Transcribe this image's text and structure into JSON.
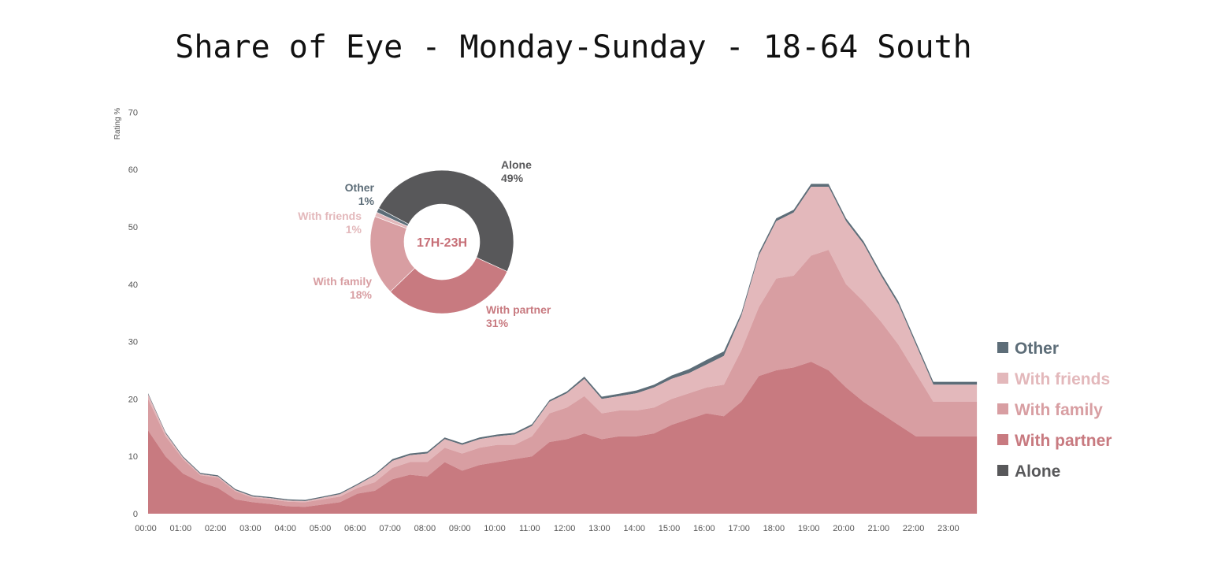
{
  "colors": {
    "other": "#5d6d78",
    "with_friends": "#e3b8bb",
    "with_family": "#d89ea2",
    "with_partner": "#c87a80",
    "alone": "#58585a",
    "center_text": "#c76f77"
  },
  "chart_data": [
    {
      "type": "area",
      "stacked": true,
      "title": "Share of Eye - Monday-Sunday - 18-64 South",
      "ylabel": "Rating %",
      "xlabel": "",
      "ylim": [
        0,
        70
      ],
      "yticks": [
        "0",
        "10",
        "20",
        "30",
        "40",
        "50",
        "60",
        "70"
      ],
      "xticks": [
        "00:00",
        "01:00",
        "02:00",
        "03:00",
        "04:00",
        "05:00",
        "06:00",
        "07:00",
        "08:00",
        "09:00",
        "10:00",
        "11:00",
        "12:00",
        "13:00",
        "14:00",
        "15:00",
        "16:00",
        "17:00",
        "18:00",
        "19:00",
        "20:00",
        "21:00",
        "22:00",
        "23:00"
      ],
      "x_hours": [
        0,
        0.5,
        1,
        1.5,
        2,
        2.5,
        3,
        3.5,
        4,
        4.5,
        5,
        5.5,
        6,
        6.5,
        7,
        7.5,
        8,
        8.5,
        9,
        9.5,
        10,
        10.5,
        11,
        11.5,
        12,
        12.5,
        13,
        13.5,
        14,
        14.5,
        15,
        15.5,
        16,
        16.5,
        17,
        17.5,
        18,
        18.5,
        19,
        19.5,
        20,
        20.5,
        21,
        21.5,
        22,
        22.5,
        23,
        23.5,
        23.75
      ],
      "series": [
        {
          "name": "With partner",
          "values": [
            14.5,
            10,
            7,
            5.5,
            4.5,
            2.5,
            2,
            1.7,
            1.3,
            1.2,
            1.6,
            2,
            3.5,
            4,
            6,
            6.8,
            6.5,
            9,
            7.5,
            8.5,
            9,
            9.5,
            10,
            12.5,
            13,
            14,
            13,
            13.5,
            13.5,
            14,
            15.5,
            16.5,
            17.5,
            17,
            19.5,
            24,
            25,
            25.5,
            26.5,
            25,
            22,
            19.5,
            17.5,
            15.5,
            13.5,
            13.5,
            13.5,
            13.5,
            13.5
          ]
        },
        {
          "name": "With family",
          "values": [
            5.5,
            3.5,
            2.5,
            1.2,
            1.8,
            1.4,
            0.8,
            0.8,
            0.8,
            0.8,
            0.9,
            1.0,
            1.0,
            1.5,
            2.0,
            2.2,
            2.5,
            2.5,
            3.0,
            3.0,
            3.0,
            2.5,
            3.5,
            5.0,
            5.5,
            6.5,
            4.5,
            4.5,
            4.5,
            4.5,
            4.5,
            4.5,
            4.5,
            5.5,
            9.0,
            12.0,
            16.0,
            16.0,
            18.5,
            21.0,
            18.0,
            17.5,
            16.0,
            14.0,
            11.0,
            6.0,
            6.0,
            6.0,
            6.0
          ]
        },
        {
          "name": "With friends",
          "values": [
            0.8,
            0.5,
            0.3,
            0.2,
            0.2,
            0.2,
            0.2,
            0.2,
            0.2,
            0.2,
            0.3,
            0.4,
            0.5,
            1.2,
            1.2,
            1.2,
            1.5,
            1.5,
            1.5,
            1.5,
            1.5,
            1.8,
            1.8,
            2.0,
            2.5,
            3.0,
            2.5,
            2.5,
            3.0,
            3.5,
            3.5,
            3.5,
            4.0,
            5.0,
            6.0,
            9.0,
            10.0,
            11.0,
            12.0,
            11.0,
            11.0,
            10.0,
            8.0,
            7.0,
            5.0,
            3.0,
            3.0,
            3.0,
            3.0
          ]
        },
        {
          "name": "Other",
          "values": [
            0.2,
            0.2,
            0.2,
            0.2,
            0.2,
            0.2,
            0.2,
            0.2,
            0.2,
            0.2,
            0.2,
            0.2,
            0.2,
            0.2,
            0.3,
            0.3,
            0.3,
            0.3,
            0.3,
            0.3,
            0.3,
            0.3,
            0.3,
            0.3,
            0.3,
            0.4,
            0.4,
            0.4,
            0.5,
            0.5,
            0.6,
            0.7,
            0.8,
            0.8,
            0.5,
            0.5,
            0.5,
            0.5,
            0.5,
            0.5,
            0.5,
            0.5,
            0.5,
            0.5,
            0.5,
            0.5,
            0.5,
            0.5,
            0.5
          ]
        },
        {
          "name": "Alone",
          "values": [
            0,
            0,
            0,
            0,
            0,
            0,
            0,
            0,
            0,
            0,
            0,
            0,
            0,
            0,
            0,
            0,
            0,
            0,
            0,
            0,
            0,
            0,
            0,
            0,
            0,
            0,
            0,
            0,
            0,
            0,
            0,
            0,
            0,
            0,
            0,
            0,
            0,
            0,
            0,
            0,
            0,
            0,
            0,
            0,
            0,
            0,
            0,
            0,
            0
          ]
        }
      ],
      "legend": [
        "Other",
        "With friends",
        "With family",
        "With partner",
        "Alone"
      ],
      "legend_position": "right"
    },
    {
      "type": "pie",
      "donut": true,
      "center_label": "17H-23H",
      "slices": [
        {
          "name": "Alone",
          "value": 49,
          "label": "Alone",
          "pct": "49%"
        },
        {
          "name": "With partner",
          "value": 31,
          "label": "With partner",
          "pct": "31%"
        },
        {
          "name": "With family",
          "value": 18,
          "label": "With family",
          "pct": "18%"
        },
        {
          "name": "With friends",
          "value": 1,
          "label": "With friends",
          "pct": "1%"
        },
        {
          "name": "Other",
          "value": 1,
          "label": "Other",
          "pct": "1%"
        }
      ]
    }
  ]
}
